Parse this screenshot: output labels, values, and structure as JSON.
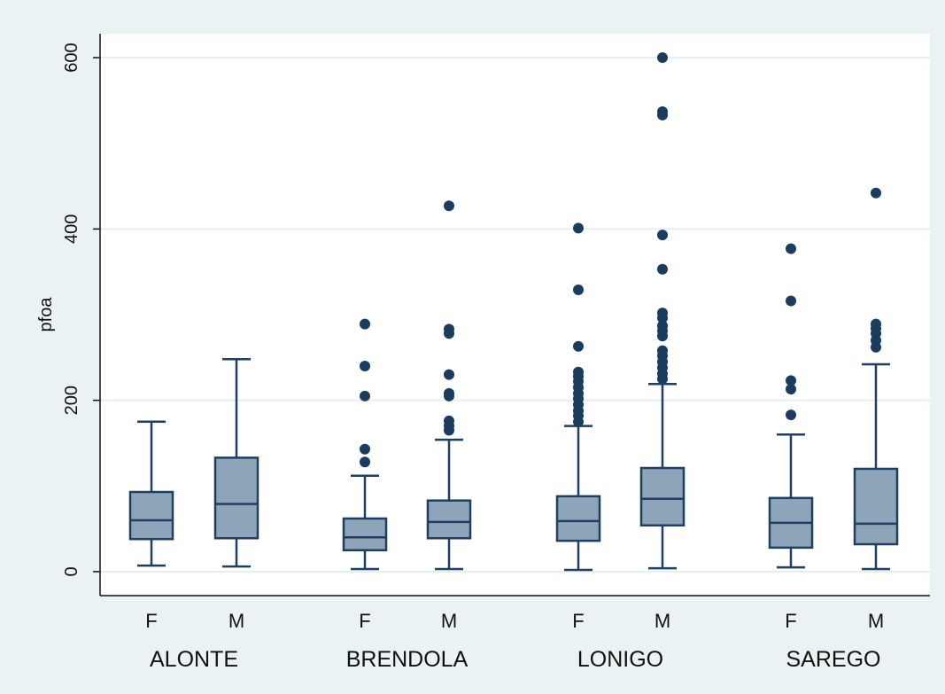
{
  "chart_data": {
    "type": "box",
    "ylabel": "pfoa",
    "ylim": [
      -28,
      628
    ],
    "yticks": [
      0,
      200,
      400,
      600
    ],
    "grid": true,
    "colors": {
      "box_fill": "#8ea5b9",
      "box_stroke": "#1e3f62",
      "outlier": "#1a3c5e",
      "grid": "#e8eef0",
      "plot_bg": "#ffffff",
      "outer_bg": "#eaf2f3"
    },
    "groups": [
      {
        "name": "ALONTE",
        "boxes": [
          {
            "sex": "F",
            "whisker_low": 7,
            "q1": 38,
            "median": 60,
            "q3": 93,
            "whisker_high": 175,
            "outliers": []
          },
          {
            "sex": "M",
            "whisker_low": 6,
            "q1": 39,
            "median": 79,
            "q3": 133,
            "whisker_high": 248,
            "outliers": []
          }
        ]
      },
      {
        "name": "BRENDOLA",
        "boxes": [
          {
            "sex": "F",
            "whisker_low": 3,
            "q1": 25,
            "median": 40,
            "q3": 62,
            "whisker_high": 112,
            "outliers": [
              128,
              143,
              205,
              240,
              289
            ]
          },
          {
            "sex": "M",
            "whisker_low": 3,
            "q1": 39,
            "median": 58,
            "q3": 83,
            "whisker_high": 154,
            "outliers": [
              165,
              170,
              176,
              205,
              208,
              230,
              278,
              283,
              427
            ]
          }
        ]
      },
      {
        "name": "LONIGO",
        "boxes": [
          {
            "sex": "F",
            "whisker_low": 2,
            "q1": 36,
            "median": 59,
            "q3": 88,
            "whisker_high": 170,
            "outliers": [
              175,
              182,
              188,
              195,
              202,
              208,
              215,
              222,
              228,
              233,
              263,
              329,
              401
            ]
          },
          {
            "sex": "M",
            "whisker_low": 4,
            "q1": 54,
            "median": 85,
            "q3": 121,
            "whisker_high": 219,
            "outliers": [
              225,
              231,
              238,
              245,
              252,
              258,
              275,
              281,
              287,
              296,
              302,
              353,
              393,
              533,
              537,
              600
            ]
          }
        ]
      },
      {
        "name": "SAREGO",
        "boxes": [
          {
            "sex": "F",
            "whisker_low": 5,
            "q1": 28,
            "median": 57,
            "q3": 86,
            "whisker_high": 160,
            "outliers": [
              183,
              213,
              223,
              316,
              377
            ]
          },
          {
            "sex": "M",
            "whisker_low": 3,
            "q1": 32,
            "median": 56,
            "q3": 120,
            "whisker_high": 242,
            "outliers": [
              262,
              270,
              278,
              284,
              289,
              442
            ]
          }
        ]
      }
    ]
  }
}
